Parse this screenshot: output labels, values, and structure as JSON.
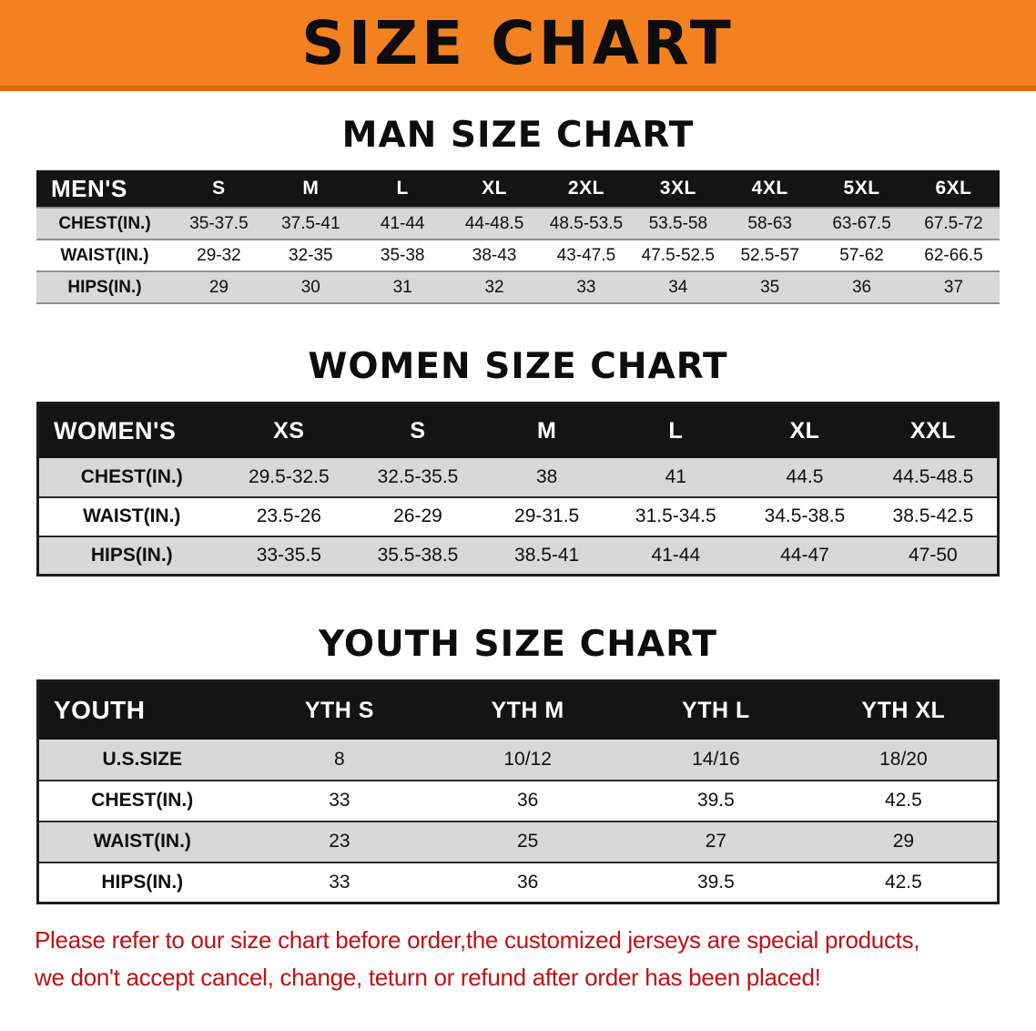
{
  "banner": {
    "title": "SIZE CHART"
  },
  "sections": {
    "men": {
      "title": "MAN SIZE CHART",
      "table": {
        "label": "MEN'S",
        "columns": [
          "S",
          "M",
          "L",
          "XL",
          "2XL",
          "3XL",
          "4XL",
          "5XL",
          "6XL"
        ],
        "rows": [
          {
            "label": "CHEST(IN.)",
            "values": [
              "35-37.5",
              "37.5-41",
              "41-44",
              "44-48.5",
              "48.5-53.5",
              "53.5-58",
              "58-63",
              "63-67.5",
              "67.5-72"
            ]
          },
          {
            "label": "WAIST(IN.)",
            "values": [
              "29-32",
              "32-35",
              "35-38",
              "38-43",
              "43-47.5",
              "47.5-52.5",
              "52.5-57",
              "57-62",
              "62-66.5"
            ]
          },
          {
            "label": "HIPS(IN.)",
            "values": [
              "29",
              "30",
              "31",
              "32",
              "33",
              "34",
              "35",
              "36",
              "37"
            ]
          }
        ]
      }
    },
    "women": {
      "title": "WOMEN SIZE CHART",
      "table": {
        "label": "WOMEN'S",
        "columns": [
          "XS",
          "S",
          "M",
          "L",
          "XL",
          "XXL"
        ],
        "rows": [
          {
            "label": "CHEST(IN.)",
            "values": [
              "29.5-32.5",
              "32.5-35.5",
              "38",
              "41",
              "44.5",
              "44.5-48.5"
            ]
          },
          {
            "label": "WAIST(IN.)",
            "values": [
              "23.5-26",
              "26-29",
              "29-31.5",
              "31.5-34.5",
              "34.5-38.5",
              "38.5-42.5"
            ]
          },
          {
            "label": "HIPS(IN.)",
            "values": [
              "33-35.5",
              "35.5-38.5",
              "38.5-41",
              "41-44",
              "44-47",
              "47-50"
            ]
          }
        ]
      }
    },
    "youth": {
      "title": "YOUTH SIZE CHART",
      "table": {
        "label": "YOUTH",
        "columns": [
          "YTH S",
          "YTH M",
          "YTH L",
          "YTH XL"
        ],
        "rows": [
          {
            "label": "U.S.SIZE",
            "values": [
              "8",
              "10/12",
              "14/16",
              "18/20"
            ]
          },
          {
            "label": "CHEST(IN.)",
            "values": [
              "33",
              "36",
              "39.5",
              "42.5"
            ]
          },
          {
            "label": "WAIST(IN.)",
            "values": [
              "23",
              "25",
              "27",
              "29"
            ]
          },
          {
            "label": "HIPS(IN.)",
            "values": [
              "33",
              "36",
              "39.5",
              "42.5"
            ]
          }
        ]
      }
    }
  },
  "disclaimer": {
    "line1": "Please refer to our size chart before order,the customized jerseys are special products,",
    "line2": "we don't accept cancel, change, teturn or refund after order has been placed!"
  },
  "colors": {
    "banner_orange": "#F48120",
    "banner_shadow": "#DD6A00",
    "title_black": "#0d0d0d",
    "header_black": "#141414",
    "stripe_gray": "#D8D8D8",
    "row_white": "#FFFFFF",
    "border_dark": "#1c1c1c",
    "disclaimer_red": "#C41111"
  }
}
